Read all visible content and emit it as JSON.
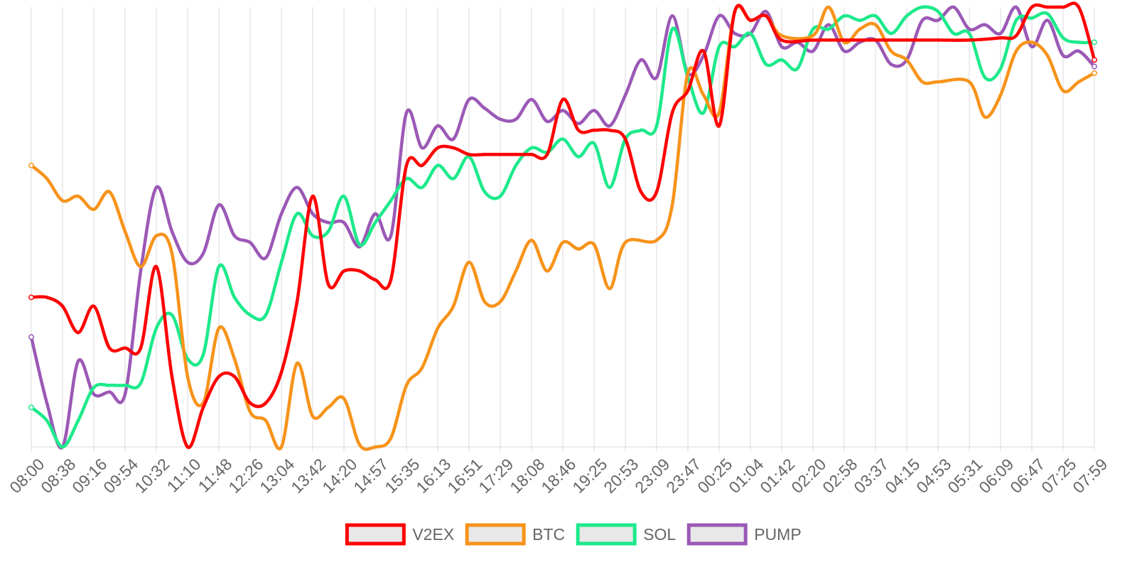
{
  "chart_data": {
    "type": "line",
    "title": "",
    "xlabel": "",
    "ylabel": "",
    "grid": {
      "vertical": true,
      "horizontal": false
    },
    "legend_position": "bottom",
    "y_axis_visible": false,
    "categories": [
      "08:00",
      "08:38",
      "09:16",
      "09:54",
      "10:32",
      "11:10",
      "11:48",
      "12:26",
      "13:04",
      "13:42",
      "14:20",
      "14:57",
      "15:35",
      "16:13",
      "16:51",
      "17:29",
      "18:08",
      "18:46",
      "19:25",
      "20:53",
      "23:09",
      "23:47",
      "00:25",
      "01:04",
      "01:42",
      "02:20",
      "02:58",
      "03:37",
      "04:15",
      "04:53",
      "05:31",
      "06:09",
      "06:47",
      "07:25",
      "07:59"
    ],
    "ylim": [
      0,
      100
    ],
    "series": [
      {
        "name": "V2EX",
        "color": "#ff0000",
        "points": [
          [
            0,
            34
          ],
          [
            0.5,
            34
          ],
          [
            1,
            32
          ],
          [
            1.5,
            26
          ],
          [
            2,
            32
          ],
          [
            2.5,
            22.5
          ],
          [
            3,
            22.5
          ],
          [
            3.5,
            22.5
          ],
          [
            4,
            41
          ],
          [
            4.5,
            16
          ],
          [
            5,
            0
          ],
          [
            5.5,
            9
          ],
          [
            6,
            16
          ],
          [
            6.5,
            16
          ],
          [
            7,
            10
          ],
          [
            7.5,
            10
          ],
          [
            8,
            17
          ],
          [
            8.5,
            33
          ],
          [
            9,
            57
          ],
          [
            9.5,
            37
          ],
          [
            10,
            40
          ],
          [
            10.5,
            40
          ],
          [
            11,
            38
          ],
          [
            11.5,
            38
          ],
          [
            12,
            64
          ],
          [
            12.5,
            64
          ],
          [
            13,
            68
          ],
          [
            13.5,
            68
          ],
          [
            14,
            66.5
          ],
          [
            14.5,
            66.5
          ],
          [
            15,
            66.5
          ],
          [
            15.5,
            66.5
          ],
          [
            16,
            66.5
          ],
          [
            16.5,
            66.5
          ],
          [
            17,
            79
          ],
          [
            17.5,
            72
          ],
          [
            18,
            72
          ],
          [
            18.5,
            72
          ],
          [
            19,
            70
          ],
          [
            19.5,
            58
          ],
          [
            20,
            58
          ],
          [
            20.5,
            76
          ],
          [
            21,
            81
          ],
          [
            21.5,
            90
          ],
          [
            22,
            73
          ],
          [
            22.5,
            99
          ],
          [
            23,
            97
          ],
          [
            23.5,
            98
          ],
          [
            24,
            92.5
          ],
          [
            25,
            92.5
          ],
          [
            26,
            92.5
          ],
          [
            27,
            92.5
          ],
          [
            28,
            92.5
          ],
          [
            29,
            92.5
          ],
          [
            30,
            92.5
          ],
          [
            31,
            93
          ],
          [
            31.5,
            93.5
          ],
          [
            32,
            100
          ],
          [
            32.5,
            100
          ],
          [
            33,
            100
          ],
          [
            33.5,
            100
          ],
          [
            34,
            88
          ]
        ]
      },
      {
        "name": "BTC",
        "color": "#f7931a",
        "points": [
          [
            0,
            64
          ],
          [
            0.5,
            61
          ],
          [
            1,
            56
          ],
          [
            1.5,
            57
          ],
          [
            2,
            54
          ],
          [
            2.5,
            58
          ],
          [
            3,
            49
          ],
          [
            3.5,
            41
          ],
          [
            4,
            48
          ],
          [
            4.5,
            44
          ],
          [
            5,
            16
          ],
          [
            5.5,
            10
          ],
          [
            6,
            27
          ],
          [
            6.5,
            20
          ],
          [
            7,
            8
          ],
          [
            7.5,
            6
          ],
          [
            8,
            0
          ],
          [
            8.5,
            19
          ],
          [
            9,
            7
          ],
          [
            9.5,
            9
          ],
          [
            10,
            11
          ],
          [
            10.5,
            0.5
          ],
          [
            11,
            0
          ],
          [
            11.5,
            2
          ],
          [
            12,
            14
          ],
          [
            12.5,
            18
          ],
          [
            13,
            27
          ],
          [
            13.5,
            32
          ],
          [
            14,
            42
          ],
          [
            14.5,
            33
          ],
          [
            15,
            33
          ],
          [
            15.5,
            40
          ],
          [
            16,
            47
          ],
          [
            16.5,
            40
          ],
          [
            17,
            46.5
          ],
          [
            17.5,
            45
          ],
          [
            18,
            46
          ],
          [
            18.5,
            36
          ],
          [
            19,
            46.5
          ],
          [
            20,
            47
          ],
          [
            20.5,
            55
          ],
          [
            21,
            85
          ],
          [
            21.5,
            80
          ],
          [
            22,
            76
          ],
          [
            22.5,
            99
          ],
          [
            23,
            97
          ],
          [
            23.5,
            98
          ],
          [
            24,
            93.5
          ],
          [
            25,
            93.5
          ],
          [
            25.5,
            100
          ],
          [
            26,
            92
          ],
          [
            26.5,
            95
          ],
          [
            27,
            96
          ],
          [
            27.5,
            90
          ],
          [
            28,
            88
          ],
          [
            28.5,
            83
          ],
          [
            29,
            83
          ],
          [
            30,
            83
          ],
          [
            30.5,
            75
          ],
          [
            31,
            80
          ],
          [
            31.5,
            90
          ],
          [
            32,
            92
          ],
          [
            32.5,
            89
          ],
          [
            33,
            81
          ],
          [
            33.5,
            83
          ],
          [
            34,
            85
          ]
        ]
      },
      {
        "name": "SOL",
        "color": "#1de98b",
        "points": [
          [
            0,
            9
          ],
          [
            0.5,
            6
          ],
          [
            1,
            0
          ],
          [
            1.5,
            6
          ],
          [
            2,
            13.5
          ],
          [
            2.5,
            14
          ],
          [
            3,
            14
          ],
          [
            3.5,
            14.5
          ],
          [
            4,
            27
          ],
          [
            4.5,
            30
          ],
          [
            5,
            20
          ],
          [
            5.5,
            21
          ],
          [
            6,
            41
          ],
          [
            6.5,
            34
          ],
          [
            7,
            30
          ],
          [
            7.5,
            30
          ],
          [
            8,
            42
          ],
          [
            8.5,
            53
          ],
          [
            9,
            48
          ],
          [
            9.5,
            49
          ],
          [
            10,
            57
          ],
          [
            10.5,
            46
          ],
          [
            11,
            51
          ],
          [
            11.5,
            56
          ],
          [
            12,
            61
          ],
          [
            12.5,
            59
          ],
          [
            13,
            64
          ],
          [
            13.5,
            61
          ],
          [
            14,
            66
          ],
          [
            14.5,
            58
          ],
          [
            15,
            57
          ],
          [
            15.5,
            64
          ],
          [
            16,
            68
          ],
          [
            16.5,
            67
          ],
          [
            17,
            70
          ],
          [
            17.5,
            66
          ],
          [
            18,
            69
          ],
          [
            18.5,
            59
          ],
          [
            19,
            70
          ],
          [
            19.5,
            72
          ],
          [
            20,
            73
          ],
          [
            20.5,
            95
          ],
          [
            21,
            84
          ],
          [
            21.5,
            76
          ],
          [
            22,
            91
          ],
          [
            22.5,
            91
          ],
          [
            23,
            94
          ],
          [
            23.5,
            87
          ],
          [
            24,
            88
          ],
          [
            24.5,
            86
          ],
          [
            25,
            95
          ],
          [
            25.5,
            95
          ],
          [
            26,
            98
          ],
          [
            26.5,
            97
          ],
          [
            27,
            98
          ],
          [
            27.5,
            94
          ],
          [
            28,
            98
          ],
          [
            28.5,
            100
          ],
          [
            29,
            99
          ],
          [
            29.5,
            94
          ],
          [
            30,
            94
          ],
          [
            30.5,
            84
          ],
          [
            31,
            86
          ],
          [
            31.5,
            97
          ],
          [
            32,
            97.5
          ],
          [
            32.5,
            98.5
          ],
          [
            33,
            93
          ],
          [
            33.5,
            92
          ],
          [
            34,
            92
          ]
        ]
      },
      {
        "name": "PUMP",
        "color": "#9b59b6",
        "points": [
          [
            0,
            25
          ],
          [
            0.5,
            10
          ],
          [
            1,
            0
          ],
          [
            1.5,
            19.5
          ],
          [
            2,
            12
          ],
          [
            2.5,
            12.5
          ],
          [
            3,
            12
          ],
          [
            3.5,
            40
          ],
          [
            4,
            59
          ],
          [
            4.5,
            49
          ],
          [
            5,
            42
          ],
          [
            5.5,
            44
          ],
          [
            6,
            55
          ],
          [
            6.5,
            48
          ],
          [
            7,
            46.5
          ],
          [
            7.5,
            43
          ],
          [
            8,
            53
          ],
          [
            8.5,
            59
          ],
          [
            9,
            53
          ],
          [
            9.5,
            51
          ],
          [
            10,
            51
          ],
          [
            10.5,
            45.5
          ],
          [
            11,
            53
          ],
          [
            11.5,
            48
          ],
          [
            12,
            76
          ],
          [
            12.5,
            68
          ],
          [
            13,
            73
          ],
          [
            13.5,
            70
          ],
          [
            14,
            79
          ],
          [
            14.5,
            77
          ],
          [
            15,
            74.5
          ],
          [
            15.5,
            74.5
          ],
          [
            16,
            79
          ],
          [
            16.5,
            74
          ],
          [
            17,
            76.5
          ],
          [
            17.5,
            73.5
          ],
          [
            18,
            76.5
          ],
          [
            18.5,
            73
          ],
          [
            19,
            80
          ],
          [
            19.5,
            88
          ],
          [
            20,
            84
          ],
          [
            20.5,
            98
          ],
          [
            21,
            85
          ],
          [
            21.5,
            89
          ],
          [
            22,
            98
          ],
          [
            22.5,
            94
          ],
          [
            23,
            94
          ],
          [
            23.5,
            99
          ],
          [
            24,
            91
          ],
          [
            24.5,
            92
          ],
          [
            25,
            90
          ],
          [
            25.5,
            96
          ],
          [
            26,
            90
          ],
          [
            26.5,
            92
          ],
          [
            27,
            92.5
          ],
          [
            27.5,
            87
          ],
          [
            28,
            88
          ],
          [
            28.5,
            97
          ],
          [
            29,
            97
          ],
          [
            29.5,
            100
          ],
          [
            30,
            95
          ],
          [
            30.5,
            96
          ],
          [
            31,
            94
          ],
          [
            31.5,
            100
          ],
          [
            32,
            91
          ],
          [
            32.5,
            97
          ],
          [
            33,
            89
          ],
          [
            33.5,
            90
          ],
          [
            34,
            86.5
          ]
        ]
      }
    ]
  }
}
